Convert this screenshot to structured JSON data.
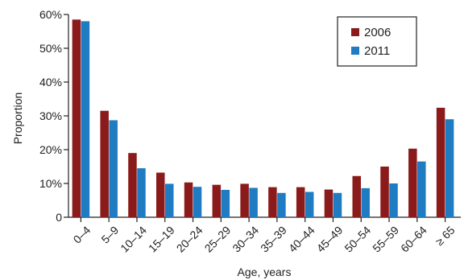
{
  "chart_data": {
    "type": "bar",
    "xlabel": "Age, years",
    "ylabel": "Proportion",
    "ylim": [
      0,
      60
    ],
    "yticks": [
      0,
      10,
      20,
      30,
      40,
      50,
      60
    ],
    "ytick_labels": [
      "0",
      "10%",
      "20%",
      "30%",
      "40%",
      "50%",
      "60%"
    ],
    "categories": [
      "0–4",
      "5–9",
      "10–14",
      "15–19",
      "20–24",
      "25–29",
      "30–34",
      "35–39",
      "40–44",
      "45–49",
      "50–54",
      "55–59",
      "60–64",
      "≥ 65"
    ],
    "series": [
      {
        "name": "2006",
        "color": "#8b1a1a",
        "values": [
          58.5,
          31.5,
          19.0,
          13.2,
          10.3,
          9.6,
          9.9,
          8.9,
          8.9,
          8.2,
          12.2,
          15.0,
          20.3,
          32.4
        ]
      },
      {
        "name": "2011",
        "color": "#1f7bc2",
        "values": [
          58.0,
          28.7,
          14.5,
          9.9,
          9.0,
          8.1,
          8.7,
          7.2,
          7.5,
          7.2,
          8.6,
          10.0,
          16.5,
          29.0
        ]
      }
    ],
    "grid": false,
    "legend_position": "top-right"
  }
}
